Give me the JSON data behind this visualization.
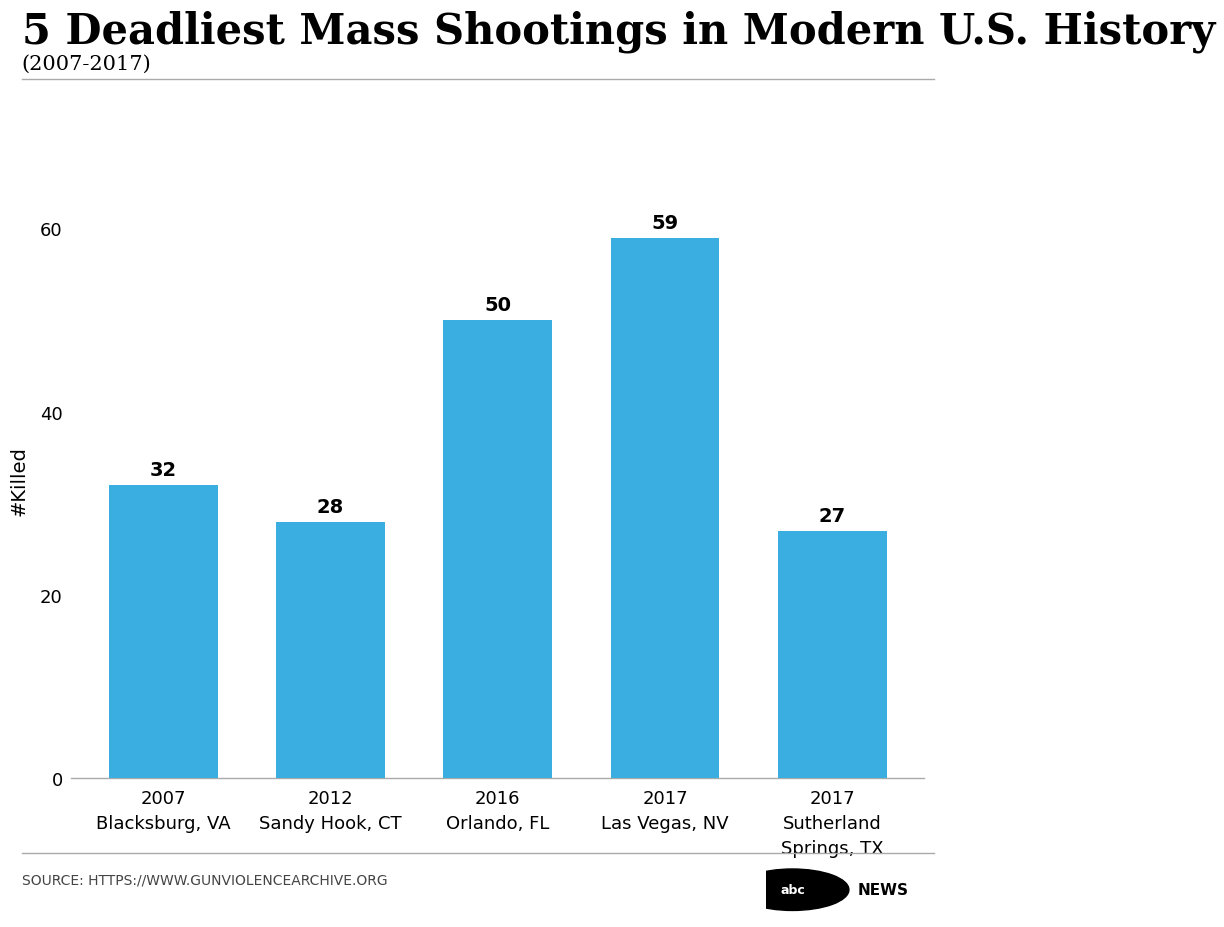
{
  "title": "5 Deadliest Mass Shootings in Modern U.S. History",
  "subtitle": "(2007-2017)",
  "categories": [
    "2007\nBlacksburg, VA",
    "2012\nSandy Hook, CT",
    "2016\nOrlando, FL",
    "2017\nLas Vegas, NV",
    "2017\nSutherland\nSprings, TX"
  ],
  "values": [
    32,
    28,
    50,
    59,
    27
  ],
  "bar_color": "#3aaee0",
  "ylabel": "#Killed",
  "ylim": [
    0,
    65
  ],
  "yticks": [
    0,
    20,
    40,
    60
  ],
  "source_text": "SOURCE: HTTPS://WWW.GUNVIOLENCEARCHIVE.ORG",
  "title_fontsize": 30,
  "subtitle_fontsize": 15,
  "ylabel_fontsize": 14,
  "tick_fontsize": 13,
  "value_label_fontsize": 14,
  "source_fontsize": 10,
  "background_color": "#ffffff"
}
